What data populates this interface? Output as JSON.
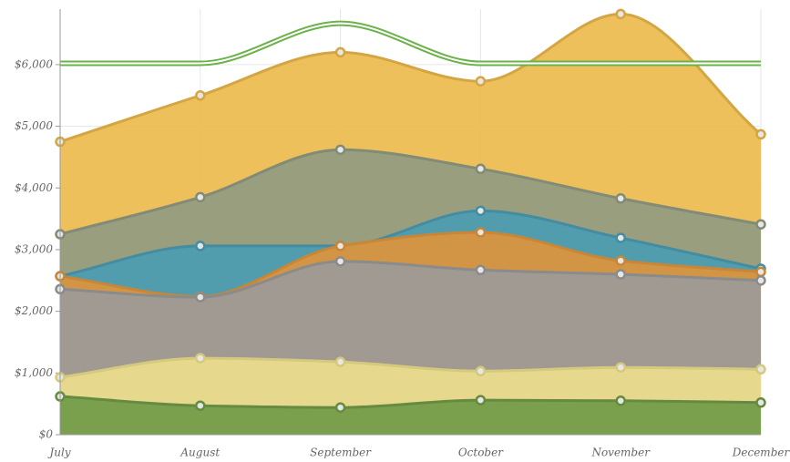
{
  "chart_data": {
    "type": "area",
    "categories": [
      "July",
      "August",
      "September",
      "October",
      "November",
      "December"
    ],
    "ylim": [
      0,
      6900
    ],
    "yticks": [
      {
        "value": 0,
        "label": "$0"
      },
      {
        "value": 1000,
        "label": "$1,000"
      },
      {
        "value": 2000,
        "label": "$2,000"
      },
      {
        "value": 3000,
        "label": "$3,000"
      },
      {
        "value": 4000,
        "label": "$4,000"
      },
      {
        "value": 5000,
        "label": "$5,000"
      },
      {
        "value": 6000,
        "label": "$6,000"
      }
    ],
    "grid": true,
    "series": [
      {
        "color": "#ecb94a",
        "values": [
          4750,
          5500,
          6200,
          5730,
          6820,
          4870
        ]
      },
      {
        "color": "#8f9a82",
        "values": [
          3250,
          3850,
          4620,
          4310,
          3830,
          3410
        ]
      },
      {
        "color": "#4a9cb3",
        "values": [
          2570,
          3060,
          3060,
          3630,
          3190,
          2690
        ]
      },
      {
        "color": "#e0953a",
        "values": [
          2570,
          2240,
          3060,
          3280,
          2820,
          2640
        ]
      },
      {
        "color": "#9a9a9a",
        "values": [
          2360,
          2230,
          2810,
          2670,
          2600,
          2500
        ]
      },
      {
        "color": "#eddf8c",
        "values": [
          930,
          1240,
          1180,
          1030,
          1090,
          1060
        ]
      },
      {
        "color": "#6f9a46",
        "values": [
          620,
          470,
          440,
          560,
          550,
          520
        ]
      },
      {
        "color": "#6bb24a",
        "kind": "line",
        "values": [
          6020,
          6020,
          6670,
          6020,
          6020,
          6020
        ]
      }
    ]
  }
}
